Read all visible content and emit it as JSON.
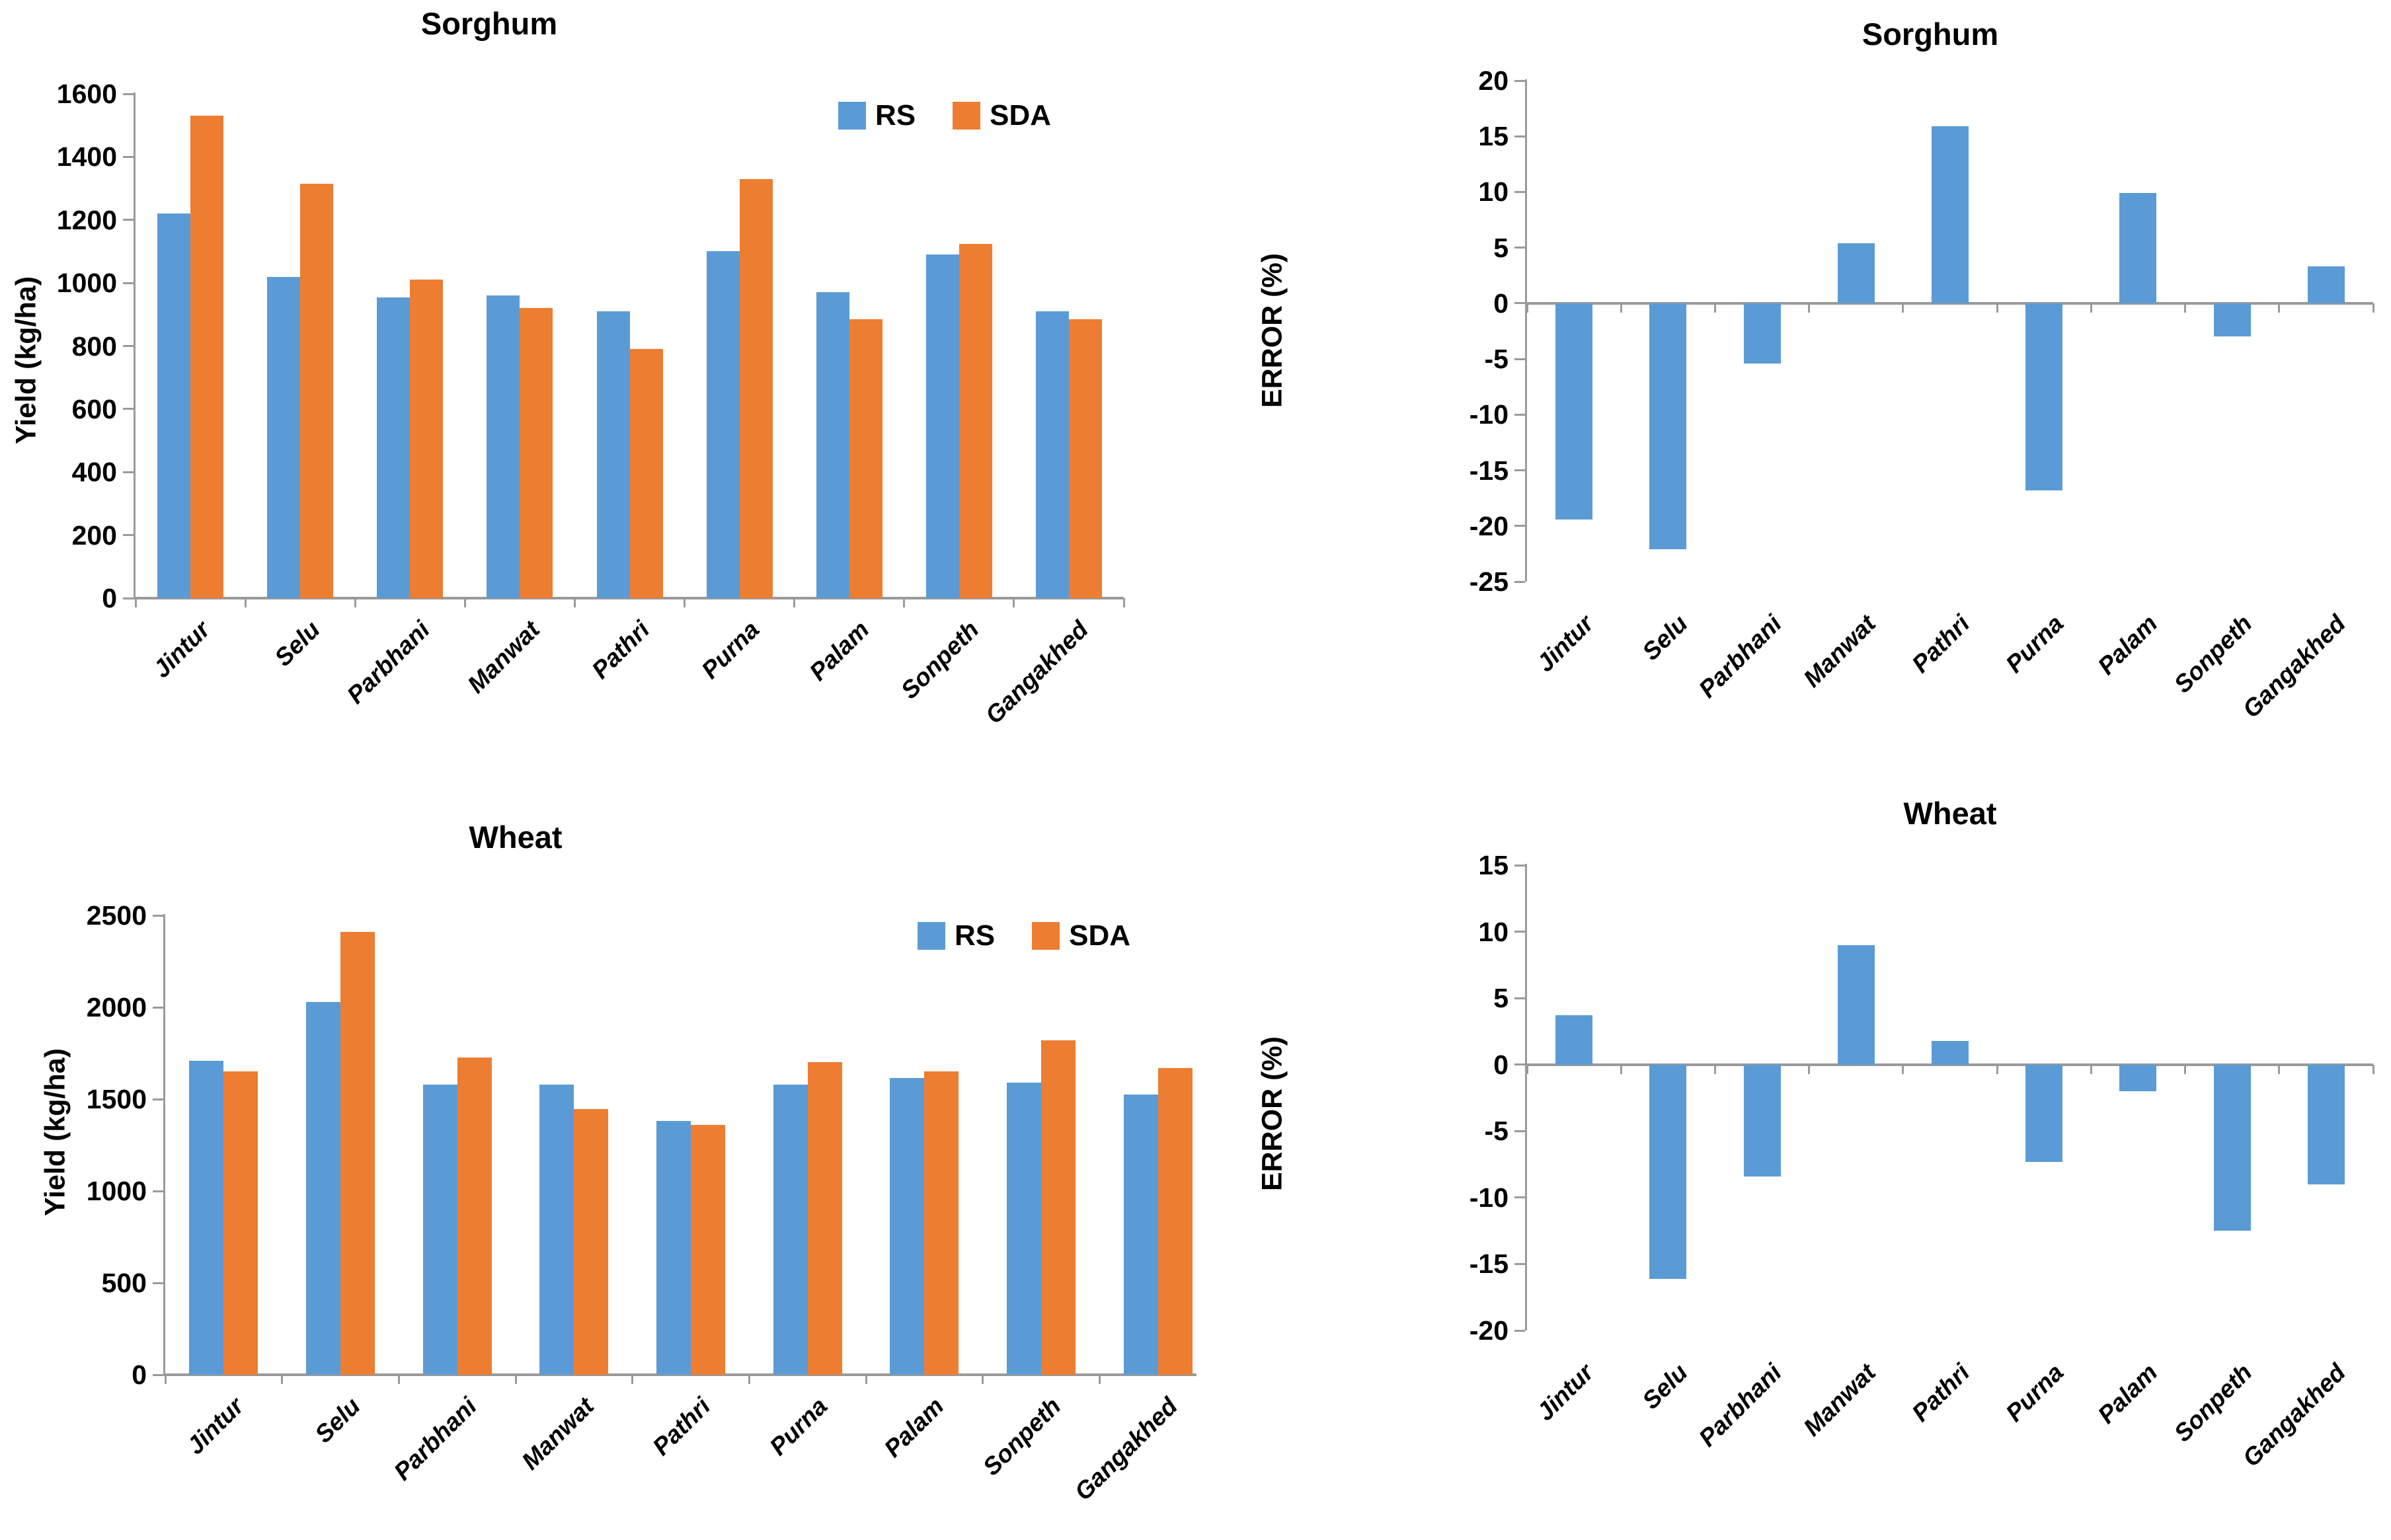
{
  "colors": {
    "rs_blue": "#5B9BD5",
    "sda_orange": "#ED7D31",
    "axis_gray": "#9A9A9A",
    "text_black": "#000000"
  },
  "chart_data": [
    {
      "id": "sorghum-yield",
      "type": "bar",
      "title": "Sorghum",
      "xlabel": "",
      "ylabel": "Yield (kg/ha)",
      "ylim": [
        0,
        1600
      ],
      "ystep": 200,
      "grid": false,
      "legend_position": "top-right-inside",
      "categories": [
        "Jintur",
        "Selu",
        "Parbhani",
        "Manwat",
        "Pathri",
        "Purna",
        "Palam",
        "Sonpeth",
        "Gangakhed"
      ],
      "series": [
        {
          "name": "RS",
          "color": "#5B9BD5",
          "values": [
            1220,
            1020,
            955,
            960,
            910,
            1100,
            970,
            1090,
            910
          ]
        },
        {
          "name": "SDA",
          "color": "#ED7D31",
          "values": [
            1530,
            1315,
            1010,
            920,
            790,
            1330,
            885,
            1125,
            885
          ]
        }
      ]
    },
    {
      "id": "sorghum-error",
      "type": "bar",
      "title": "Sorghum",
      "xlabel": "",
      "ylabel": "ERROR (%)",
      "ylim": [
        -25,
        20
      ],
      "ystep": 5,
      "grid": false,
      "legend_position": "none",
      "categories": [
        "Jintur",
        "Selu",
        "Parbhani",
        "Manwat",
        "Pathri",
        "Purna",
        "Palam",
        "Sonpeth",
        "Gangakhed"
      ],
      "series": [
        {
          "name": "ERROR",
          "color": "#5B9BD5",
          "values": [
            -19.4,
            -22.1,
            -5.4,
            5.4,
            15.9,
            -16.8,
            9.9,
            -3.0,
            3.3
          ]
        }
      ]
    },
    {
      "id": "wheat-yield",
      "type": "bar",
      "title": "Wheat",
      "xlabel": "",
      "ylabel": "Yield (kg/ha)",
      "ylim": [
        0,
        2500
      ],
      "ystep": 500,
      "grid": false,
      "legend_position": "top-right-inside",
      "categories": [
        "Jintur",
        "Selu",
        "Parbhani",
        "Manwat",
        "Pathri",
        "Purna",
        "Palam",
        "Sonpeth",
        "Gangakhed"
      ],
      "series": [
        {
          "name": "RS",
          "color": "#5B9BD5",
          "values": [
            1710,
            2030,
            1580,
            1580,
            1380,
            1580,
            1615,
            1590,
            1525
          ]
        },
        {
          "name": "SDA",
          "color": "#ED7D31",
          "values": [
            1650,
            2410,
            1725,
            1445,
            1360,
            1700,
            1650,
            1820,
            1670
          ]
        }
      ]
    },
    {
      "id": "wheat-error",
      "type": "bar",
      "title": "Wheat",
      "xlabel": "",
      "ylabel": "ERROR (%)",
      "ylim": [
        -20,
        15
      ],
      "ystep": 5,
      "grid": false,
      "legend_position": "none",
      "categories": [
        "Jintur",
        "Selu",
        "Parbhani",
        "Manwat",
        "Pathri",
        "Purna",
        "Palam",
        "Sonpeth",
        "Gangakhed"
      ],
      "series": [
        {
          "name": "ERROR",
          "color": "#5B9BD5",
          "values": [
            3.7,
            -16.1,
            -8.4,
            9.0,
            1.8,
            -7.3,
            -2.0,
            -12.5,
            -9.0
          ]
        }
      ]
    }
  ]
}
